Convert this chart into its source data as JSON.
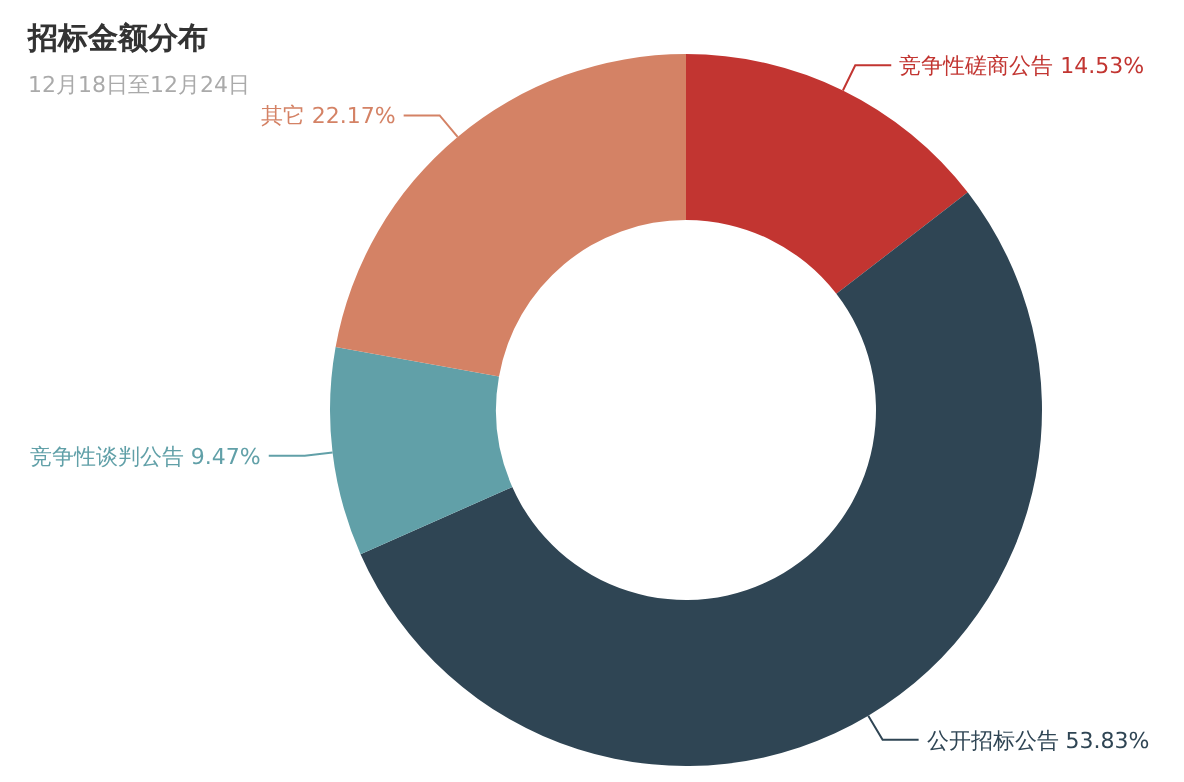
{
  "chart_data": {
    "type": "donut",
    "title": "招标金额分布",
    "subtitle": "12月18日至12月24日",
    "categories": [
      "竞争性磋商公告",
      "公开招标公告",
      "竞争性谈判公告",
      "其它"
    ],
    "values": [
      14.53,
      53.83,
      9.47,
      22.17
    ],
    "value_labels": [
      "14.53%",
      "53.83%",
      "9.47%",
      "22.17%"
    ],
    "colors": [
      "#c23531",
      "#2f4554",
      "#61a0a8",
      "#d48265"
    ]
  }
}
